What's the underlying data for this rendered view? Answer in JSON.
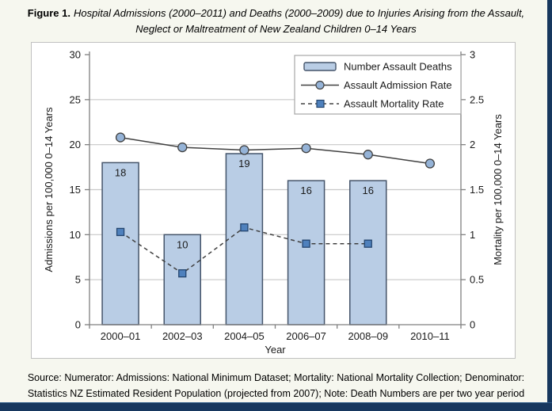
{
  "figure": {
    "label": "Figure 1.",
    "title": "Hospital Admissions (2000–2011) and Deaths (2000–2009) due to Injuries Arising from the Assault, Neglect or Maltreatment of New Zealand Children 0–14 Years"
  },
  "source_note": "Source: Numerator: Admissions: National Minimum Dataset; Mortality: National Mortality Collection; Denominator: Statistics NZ Estimated Resident Population (projected from 2007); Note: Death Numbers are per two year period",
  "colors": {
    "page_bg": "#F6F7EF",
    "accent_border": "#17375E",
    "bar_fill": "#B9CDE5",
    "bar_border": "#44546A",
    "line": "#404040",
    "circle_marker_fill": "#95B3D7",
    "square_marker_fill": "#4F81BD",
    "grid": "#C8C8C8",
    "axis": "#808080",
    "legend_border": "#A6A6A6"
  },
  "chart_data": {
    "type": "bar",
    "subtype": "combo bar + two lines, dual y-axis",
    "categories": [
      "2000–01",
      "2002–03",
      "2004–05",
      "2006–07",
      "2008–09",
      "2010–11"
    ],
    "series": [
      {
        "name": "Number Assault Deaths",
        "kind": "bar",
        "axis": "left",
        "values": [
          18,
          10,
          19,
          16,
          16,
          null
        ],
        "show_labels": true
      },
      {
        "name": "Assault Admission Rate",
        "kind": "line",
        "axis": "left",
        "marker": "circle",
        "values": [
          20.8,
          19.7,
          19.4,
          19.6,
          18.9,
          17.9
        ]
      },
      {
        "name": "Assault Mortality Rate",
        "kind": "line-dashed",
        "axis": "right",
        "marker": "square",
        "values": [
          1.03,
          0.57,
          1.08,
          0.9,
          0.9,
          null
        ]
      }
    ],
    "xlabel": "Year",
    "ylabel_left": "Admissions per 100,000 0–14 Years",
    "ylabel_right": "Mortality per 100,000 0–14 Years",
    "ylim_left": [
      0,
      30
    ],
    "ylim_right": [
      0,
      3
    ],
    "ytick_labels_left": [
      "0",
      "5",
      "10",
      "15",
      "20",
      "25",
      "30"
    ],
    "ytick_labels_right": [
      "0",
      "0.5",
      "1",
      "1.5",
      "2",
      "2.5",
      "3"
    ],
    "grid": "horizontal",
    "legend_position": "top-right"
  }
}
